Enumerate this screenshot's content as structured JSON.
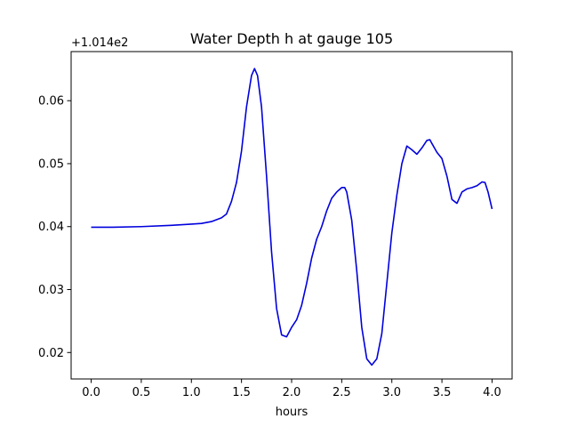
{
  "chart_data": {
    "type": "line",
    "title": "Water Depth h at gauge 105",
    "xlabel": "hours",
    "ylabel": "",
    "y_offset_label": "+1.014e2",
    "xlim": [
      -0.2,
      4.2
    ],
    "ylim": [
      0.0158,
      0.0678
    ],
    "grid": false,
    "x_ticks": [
      0.0,
      0.5,
      1.0,
      1.5,
      2.0,
      2.5,
      3.0,
      3.5,
      4.0
    ],
    "x_tick_labels": [
      "0.0",
      "0.5",
      "1.0",
      "1.5",
      "2.0",
      "2.5",
      "3.0",
      "3.5",
      "4.0"
    ],
    "y_ticks": [
      0.02,
      0.03,
      0.04,
      0.05,
      0.06
    ],
    "y_tick_labels": [
      "0.02",
      "0.03",
      "0.04",
      "0.05",
      "0.06"
    ],
    "series": [
      {
        "color": "#0000dd",
        "x": [
          0.0,
          0.2,
          0.5,
          0.8,
          1.0,
          1.1,
          1.2,
          1.3,
          1.35,
          1.4,
          1.45,
          1.5,
          1.55,
          1.6,
          1.63,
          1.66,
          1.7,
          1.75,
          1.8,
          1.85,
          1.9,
          1.95,
          2.0,
          2.05,
          2.1,
          2.15,
          2.2,
          2.25,
          2.3,
          2.35,
          2.4,
          2.45,
          2.5,
          2.53,
          2.55,
          2.6,
          2.65,
          2.7,
          2.75,
          2.8,
          2.85,
          2.9,
          2.95,
          3.0,
          3.05,
          3.1,
          3.15,
          3.2,
          3.25,
          3.3,
          3.35,
          3.38,
          3.4,
          3.45,
          3.5,
          3.55,
          3.6,
          3.65,
          3.7,
          3.75,
          3.8,
          3.85,
          3.9,
          3.93,
          3.96,
          4.0
        ],
        "y": [
          0.0399,
          0.0399,
          0.04,
          0.0402,
          0.0404,
          0.0405,
          0.0408,
          0.0414,
          0.042,
          0.044,
          0.047,
          0.052,
          0.059,
          0.064,
          0.0651,
          0.064,
          0.059,
          0.048,
          0.036,
          0.027,
          0.0228,
          0.0225,
          0.024,
          0.0252,
          0.0275,
          0.031,
          0.035,
          0.038,
          0.04,
          0.0425,
          0.0445,
          0.0455,
          0.0462,
          0.0462,
          0.0455,
          0.041,
          0.033,
          0.024,
          0.019,
          0.018,
          0.019,
          0.023,
          0.031,
          0.039,
          0.045,
          0.05,
          0.0528,
          0.0522,
          0.0515,
          0.0525,
          0.0537,
          0.0538,
          0.0532,
          0.0518,
          0.0508,
          0.048,
          0.0443,
          0.0437,
          0.0455,
          0.046,
          0.0462,
          0.0465,
          0.0471,
          0.047,
          0.0455,
          0.0428
        ]
      }
    ]
  }
}
